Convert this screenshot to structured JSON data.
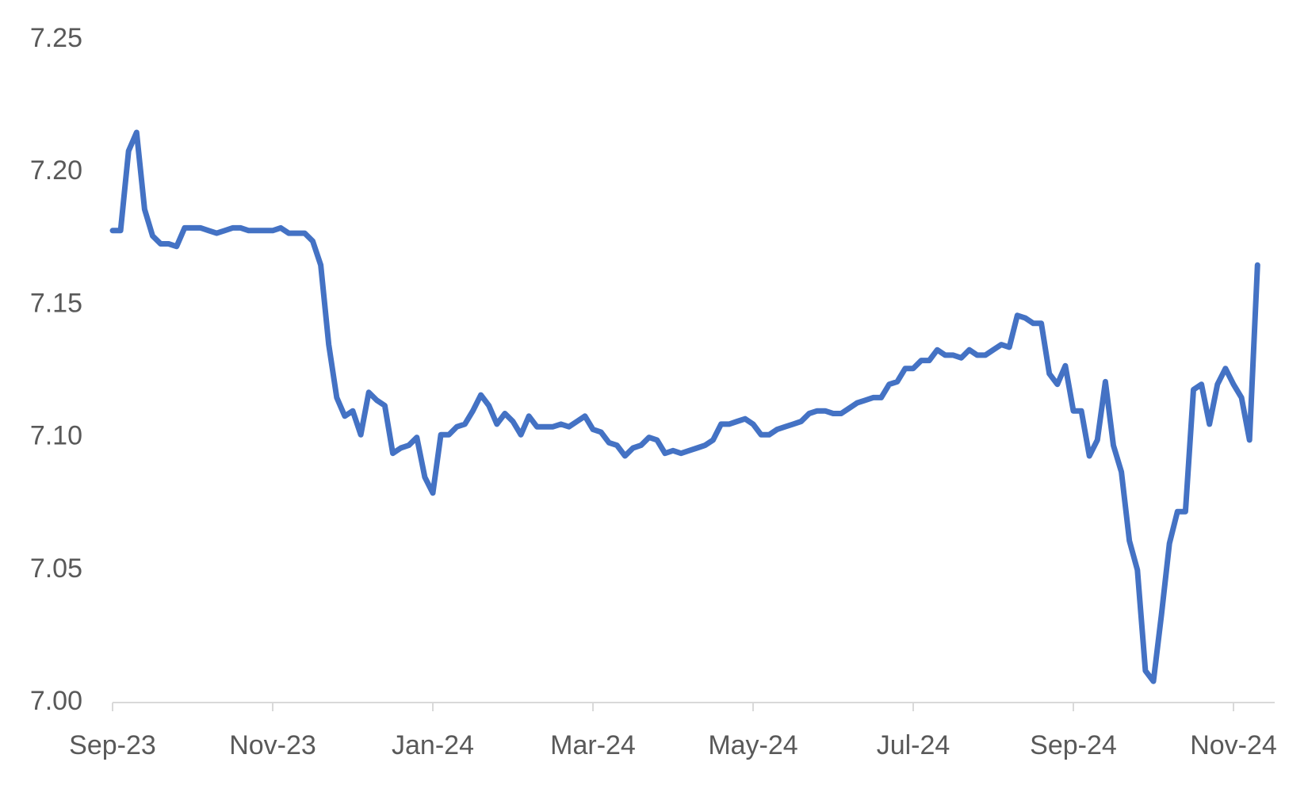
{
  "chart_data": {
    "type": "line",
    "categories": [
      "Sep-23",
      null,
      null,
      null,
      null,
      null,
      null,
      null,
      null,
      null,
      null,
      null,
      null,
      null,
      null,
      null,
      null,
      null,
      null,
      null,
      "Nov-23",
      null,
      null,
      null,
      null,
      null,
      null,
      null,
      null,
      null,
      null,
      null,
      null,
      null,
      null,
      null,
      null,
      null,
      null,
      null,
      "Jan-24",
      null,
      null,
      null,
      null,
      null,
      null,
      null,
      null,
      null,
      null,
      null,
      null,
      null,
      null,
      null,
      null,
      null,
      null,
      null,
      "Mar-24",
      null,
      null,
      null,
      null,
      null,
      null,
      null,
      null,
      null,
      null,
      null,
      null,
      null,
      null,
      null,
      null,
      null,
      null,
      null,
      "May-24",
      null,
      null,
      null,
      null,
      null,
      null,
      null,
      null,
      null,
      null,
      null,
      null,
      null,
      null,
      null,
      null,
      null,
      null,
      null,
      "Jul-24",
      null,
      null,
      null,
      null,
      null,
      null,
      null,
      null,
      null,
      null,
      null,
      null,
      null,
      null,
      null,
      null,
      null,
      null,
      null,
      "Sep-24",
      null,
      null,
      null,
      null,
      null,
      null,
      null,
      null,
      null,
      null,
      null,
      null,
      null,
      null,
      null,
      null,
      null,
      null,
      null,
      "Nov-24",
      null,
      null,
      null
    ],
    "values": [
      7.178,
      7.178,
      7.208,
      7.215,
      7.186,
      7.176,
      7.173,
      7.173,
      7.172,
      7.179,
      7.179,
      7.179,
      7.178,
      7.177,
      7.178,
      7.179,
      7.179,
      7.178,
      7.178,
      7.178,
      7.178,
      7.179,
      7.177,
      7.177,
      7.177,
      7.174,
      7.165,
      7.135,
      7.115,
      7.108,
      7.11,
      7.101,
      7.117,
      7.114,
      7.112,
      7.094,
      7.096,
      7.097,
      7.1,
      7.085,
      7.079,
      7.101,
      7.101,
      7.104,
      7.105,
      7.11,
      7.116,
      7.112,
      7.105,
      7.109,
      7.106,
      7.101,
      7.108,
      7.104,
      7.104,
      7.104,
      7.105,
      7.104,
      7.106,
      7.108,
      7.103,
      7.102,
      7.098,
      7.097,
      7.093,
      7.096,
      7.097,
      7.1,
      7.099,
      7.094,
      7.095,
      7.094,
      7.095,
      7.096,
      7.097,
      7.099,
      7.105,
      7.105,
      7.106,
      7.107,
      7.105,
      7.101,
      7.101,
      7.103,
      7.104,
      7.105,
      7.106,
      7.109,
      7.11,
      7.11,
      7.109,
      7.109,
      7.111,
      7.113,
      7.114,
      7.115,
      7.115,
      7.12,
      7.121,
      7.126,
      7.126,
      7.129,
      7.129,
      7.133,
      7.131,
      7.131,
      7.13,
      7.133,
      7.131,
      7.131,
      7.133,
      7.135,
      7.134,
      7.146,
      7.145,
      7.143,
      7.143,
      7.124,
      7.12,
      7.127,
      7.11,
      7.11,
      7.093,
      7.099,
      7.121,
      7.097,
      7.087,
      7.061,
      7.05,
      7.012,
      7.008,
      7.033,
      7.06,
      7.072,
      7.072,
      7.118,
      7.12,
      7.105,
      7.12,
      7.126,
      7.12,
      7.115,
      7.099,
      7.165
    ],
    "color": "#4472c4",
    "ylim": [
      7,
      7.25
    ],
    "yticks": [
      {
        "value": 7,
        "label": "7.00"
      },
      7.05,
      {
        "value": 7.1,
        "label": "7.10"
      },
      7.15,
      {
        "value": 7.2,
        "label": "7.20"
      },
      7.25
    ],
    "grid": false
  }
}
